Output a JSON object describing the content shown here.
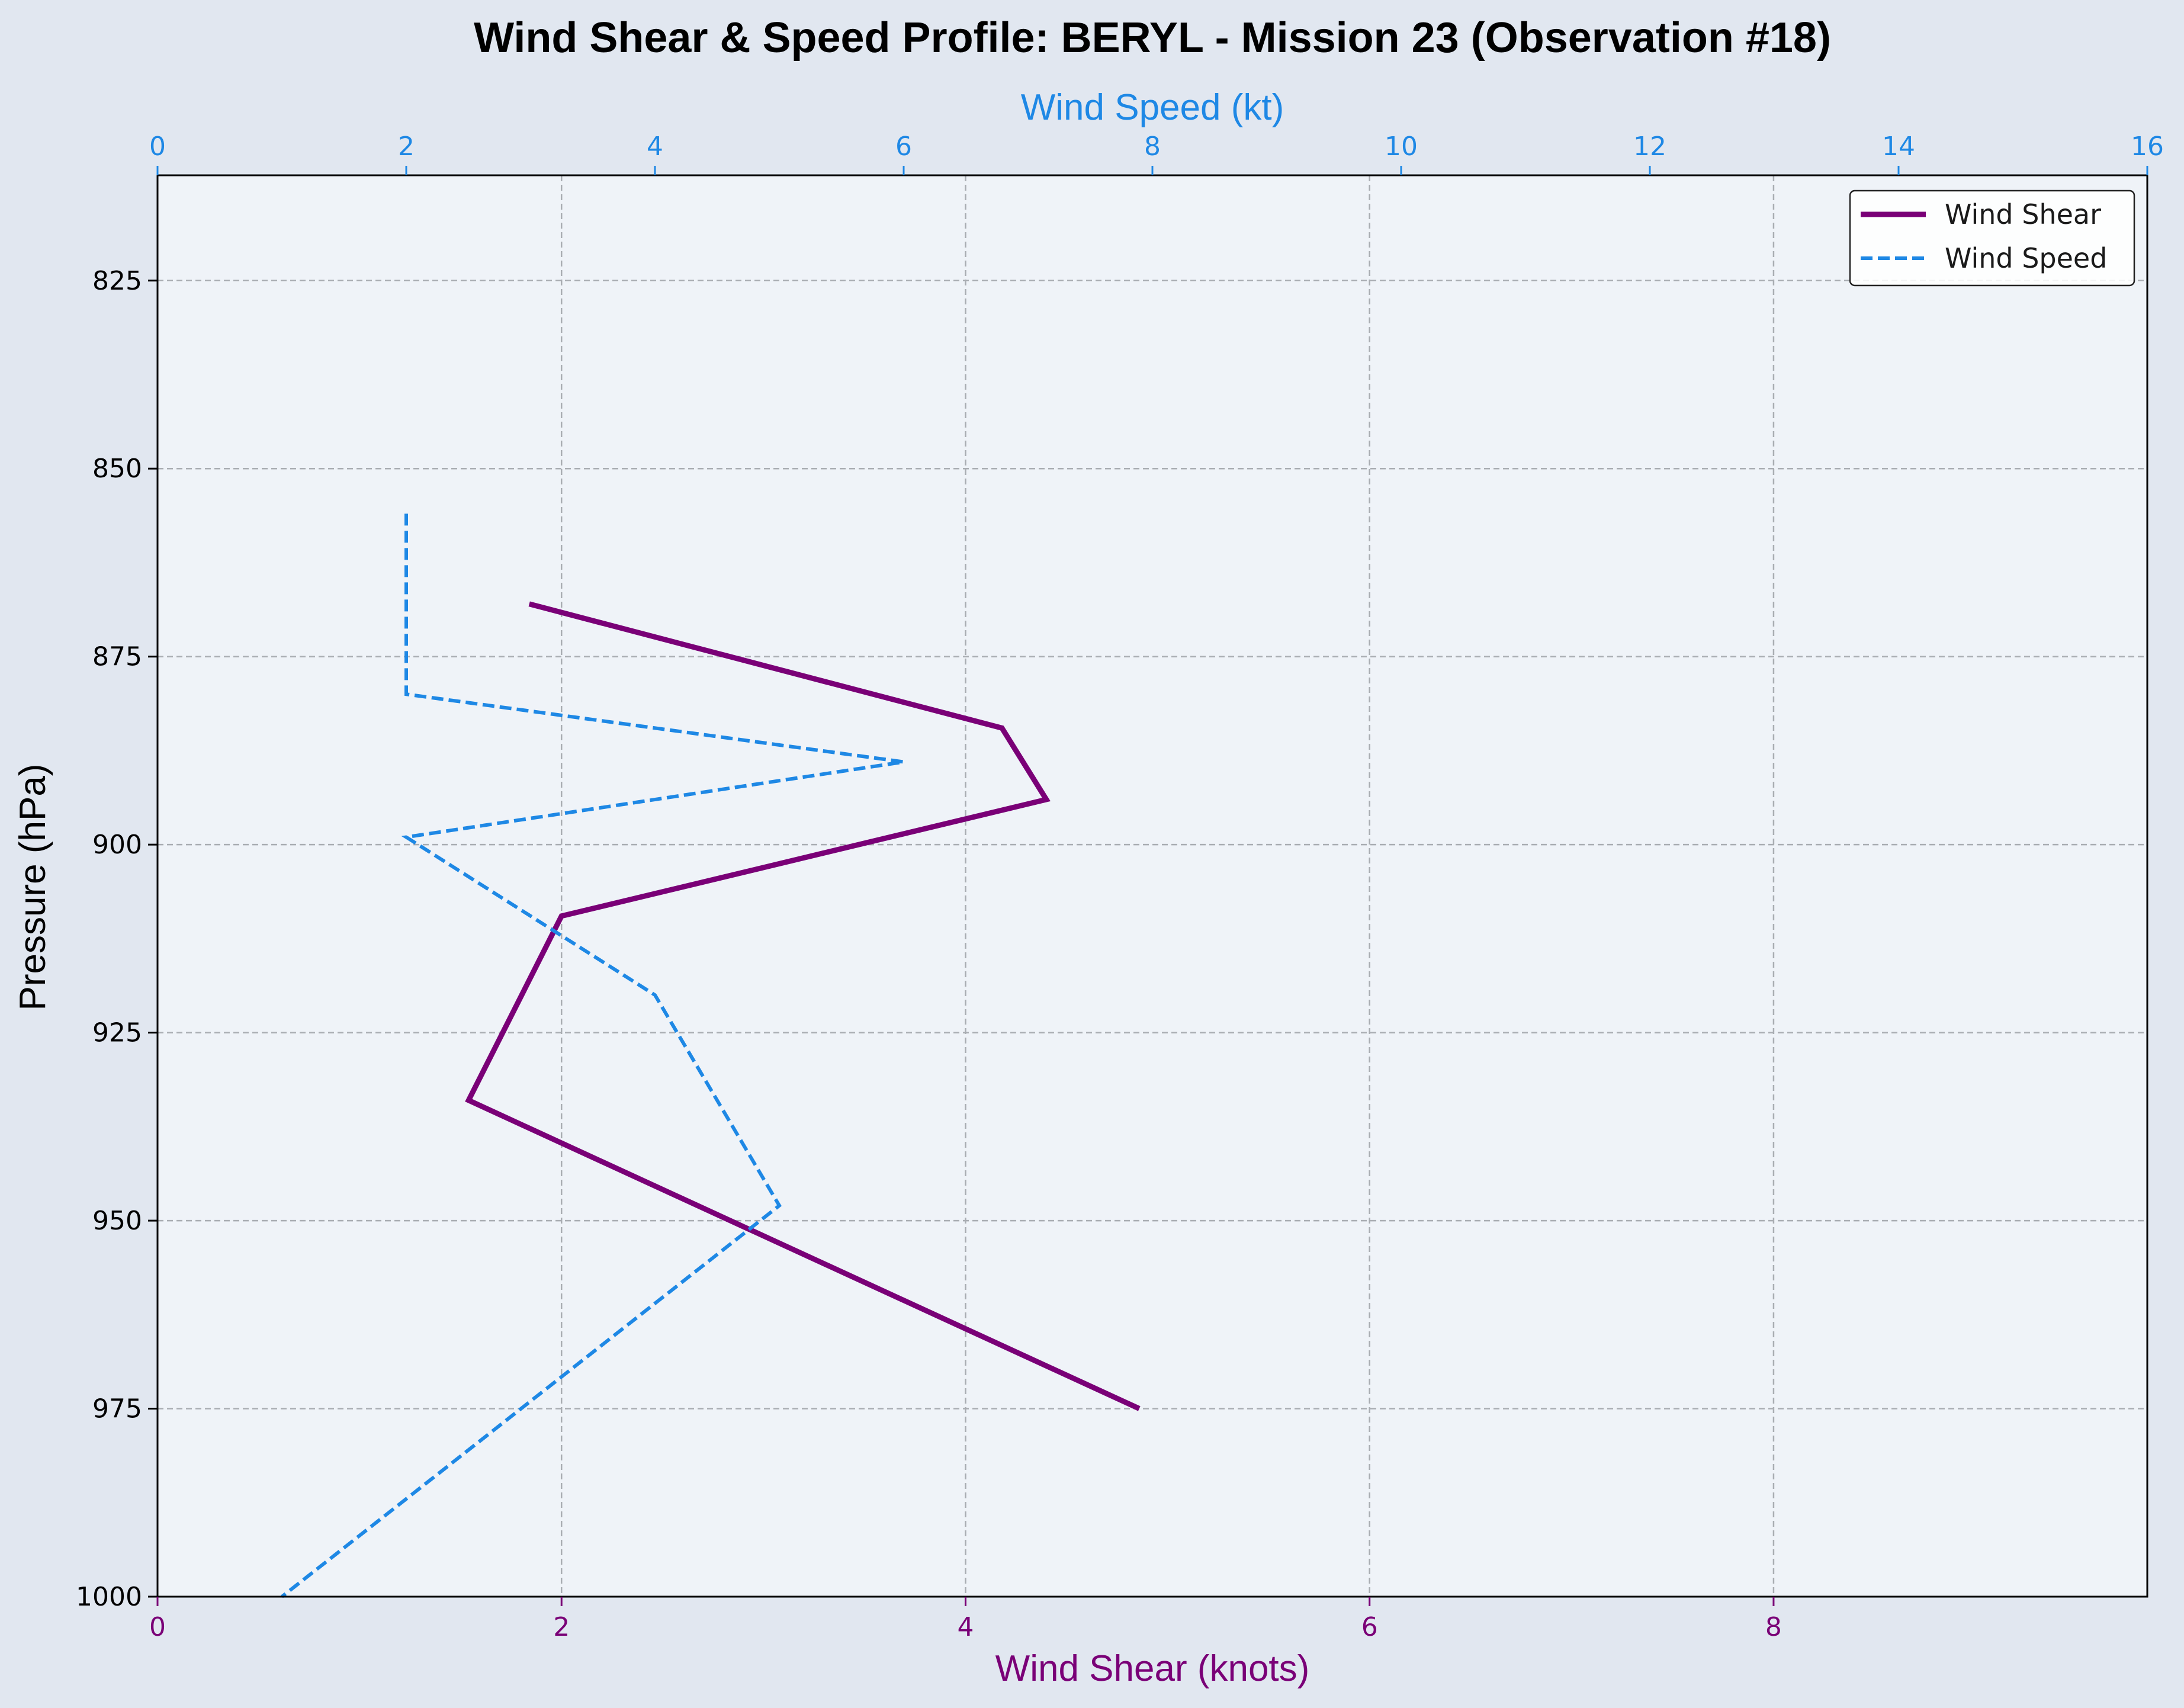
{
  "chart_data": {
    "type": "line",
    "title": "Wind Shear & Speed Profile: BERYL - Mission 23 (Observation #18)",
    "ylabel": "Pressure (hPa)",
    "xlabel_bottom": "Wind Shear (knots)",
    "xlabel_top": "Wind Speed (kt)",
    "ylim": [
      1000,
      811
    ],
    "y_inverted": true,
    "xlim_bottom": [
      0,
      9.85
    ],
    "xlim_top": [
      0,
      16
    ],
    "yticks": [
      "825",
      "850",
      "875",
      "900",
      "925",
      "950",
      "975",
      "1000"
    ],
    "xticks_bottom": [
      "0",
      "2",
      "4",
      "6",
      "8"
    ],
    "xticks_top": [
      "0",
      "2",
      "4",
      "6",
      "8",
      "10",
      "12",
      "14",
      "16"
    ],
    "grid": true,
    "legend_position": "top-right",
    "colors": {
      "shear": "#7a0077",
      "speed": "#1e88e5",
      "plot_bg": "#eff3f8",
      "page_bg": "#e1e7f0"
    },
    "series": [
      {
        "name": "Wind Shear",
        "axis": "bottom",
        "style": "solid",
        "pressure": [
          868,
          884.5,
          894,
          909.5,
          934,
          975
        ],
        "values": [
          1.84,
          4.18,
          4.4,
          2.0,
          1.54,
          4.86
        ]
      },
      {
        "name": "Wind Speed",
        "axis": "top",
        "style": "dashed",
        "pressure": [
          856,
          880,
          889,
          899,
          920,
          948,
          1000
        ],
        "values": [
          2.0,
          2.0,
          6.0,
          2.0,
          4.0,
          5.0,
          1.0
        ]
      }
    ]
  }
}
